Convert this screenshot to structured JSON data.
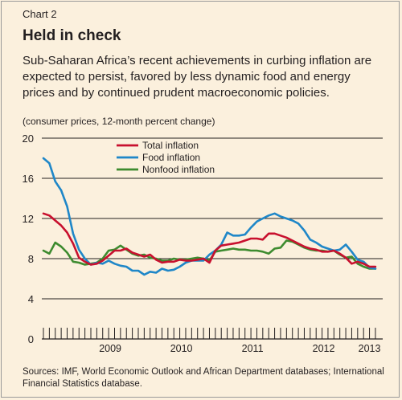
{
  "header": {
    "chart_label": "Chart 2",
    "title": "Held in check",
    "subtitle": "Sub-Saharan Africa’s recent achievements in curbing inflation are expected to persist, favored by less dynamic food and energy prices and by continued prudent macroeconomic policies.",
    "unit_note": "(consumer prices, 12-month percent change)"
  },
  "footer": {
    "source": "Sources: IMF, World Economic Outlook and African Department databases; International Financial Statistics database."
  },
  "colors": {
    "background": "#fbf0dd",
    "total": "#c8102e",
    "food": "#1f87c8",
    "nonfood": "#3d8b2f",
    "grid": "#231f20"
  },
  "chart_data": {
    "type": "line",
    "title": "Held in check",
    "ylabel": "",
    "xlabel": "",
    "ylim": [
      0,
      20
    ],
    "yticks": [
      0,
      4,
      8,
      12,
      16,
      20
    ],
    "year_labels": [
      "2009",
      "2010",
      "2011",
      "2012",
      "2013"
    ],
    "grid": true,
    "legend_position": "top-left",
    "x_start": "2008-07",
    "x": [
      "2008-07",
      "2008-08",
      "2008-09",
      "2008-10",
      "2008-11",
      "2008-12",
      "2009-01",
      "2009-02",
      "2009-03",
      "2009-04",
      "2009-05",
      "2009-06",
      "2009-07",
      "2009-08",
      "2009-09",
      "2009-10",
      "2009-11",
      "2009-12",
      "2010-01",
      "2010-02",
      "2010-03",
      "2010-04",
      "2010-05",
      "2010-06",
      "2010-07",
      "2010-08",
      "2010-09",
      "2010-10",
      "2010-11",
      "2010-12",
      "2011-01",
      "2011-02",
      "2011-03",
      "2011-04",
      "2011-05",
      "2011-06",
      "2011-07",
      "2011-08",
      "2011-09",
      "2011-10",
      "2011-11",
      "2011-12",
      "2012-01",
      "2012-02",
      "2012-03",
      "2012-04",
      "2012-05",
      "2012-06",
      "2012-07",
      "2012-08",
      "2012-09",
      "2012-10",
      "2012-11",
      "2012-12",
      "2013-01",
      "2013-02",
      "2013-03"
    ],
    "series": [
      {
        "name": "Total inflation",
        "color": "#c8102e",
        "values": [
          12.5,
          12.3,
          11.8,
          11.3,
          10.6,
          9.5,
          8.1,
          7.7,
          7.4,
          7.5,
          7.8,
          8.3,
          8.8,
          8.8,
          9.0,
          8.6,
          8.4,
          8.2,
          8.4,
          7.9,
          7.6,
          7.7,
          7.7,
          7.9,
          7.8,
          7.8,
          7.9,
          8.0,
          7.6,
          8.8,
          9.3,
          9.4,
          9.5,
          9.6,
          9.8,
          10.0,
          10.0,
          9.9,
          10.5,
          10.5,
          10.3,
          10.1,
          9.8,
          9.5,
          9.2,
          9.0,
          8.9,
          8.7,
          8.7,
          8.8,
          8.5,
          8.1,
          7.5,
          7.7,
          7.5,
          7.2,
          7.2
        ]
      },
      {
        "name": "Food inflation",
        "color": "#1f87c8",
        "values": [
          18.0,
          17.5,
          15.7,
          14.8,
          13.2,
          10.5,
          8.9,
          8.0,
          7.4,
          7.6,
          7.5,
          7.8,
          7.5,
          7.3,
          7.2,
          6.8,
          6.8,
          6.4,
          6.7,
          6.6,
          7.0,
          6.8,
          6.9,
          7.2,
          7.6,
          7.8,
          7.8,
          7.8,
          8.4,
          8.8,
          9.4,
          10.6,
          10.3,
          10.3,
          10.4,
          11.1,
          11.7,
          12.0,
          12.3,
          12.5,
          12.2,
          12.0,
          11.8,
          11.5,
          10.8,
          9.9,
          9.6,
          9.2,
          9.0,
          8.8,
          8.9,
          9.4,
          8.7,
          7.9,
          7.7,
          7.1,
          7.0
        ]
      },
      {
        "name": "Nonfood inflation",
        "color": "#3d8b2f",
        "values": [
          8.8,
          8.5,
          9.6,
          9.2,
          8.6,
          7.7,
          7.6,
          7.4,
          7.5,
          7.6,
          8.0,
          8.8,
          8.9,
          9.3,
          8.9,
          8.5,
          8.3,
          8.4,
          8.1,
          8.0,
          7.8,
          7.8,
          8.0,
          7.9,
          7.9,
          8.0,
          8.1,
          8.0,
          7.8,
          8.7,
          8.8,
          8.9,
          9.0,
          8.9,
          8.9,
          8.8,
          8.8,
          8.7,
          8.5,
          9.0,
          9.1,
          9.8,
          9.7,
          9.4,
          9.1,
          8.9,
          8.8,
          8.8,
          8.7,
          8.8,
          8.4,
          8.1,
          8.2,
          7.5,
          7.2,
          7.0,
          7.0
        ]
      }
    ]
  }
}
